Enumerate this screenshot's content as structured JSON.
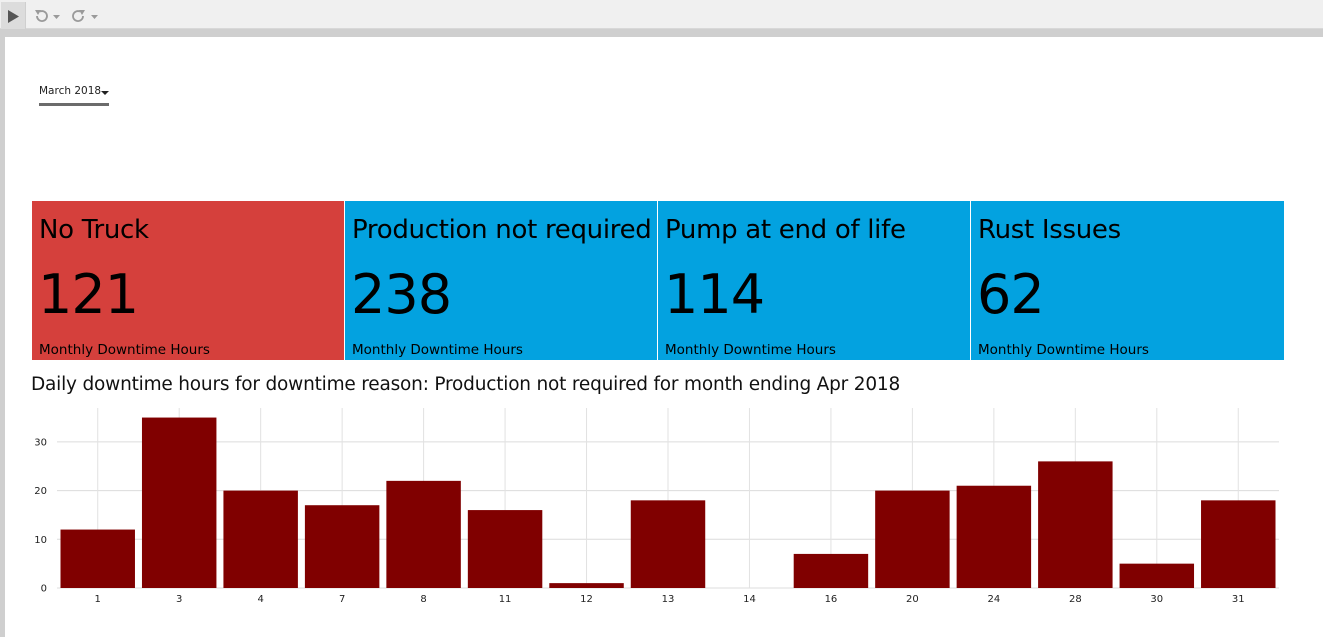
{
  "toolbar": {
    "play_icon": "play-icon",
    "undo_icon": "undo-icon",
    "redo_icon": "redo-icon"
  },
  "filter": {
    "selected_month": "March 2018"
  },
  "cards": [
    {
      "title": "No Truck",
      "value": "121",
      "subtitle": "Monthly Downtime Hours",
      "color": "#d5403c"
    },
    {
      "title": "Production not required",
      "value": "238",
      "subtitle": "Monthly Downtime Hours",
      "color": "#03a2e0"
    },
    {
      "title": "Pump at end of life",
      "value": "114",
      "subtitle": "Monthly Downtime Hours",
      "color": "#03a2e0"
    },
    {
      "title": "Rust Issues",
      "value": "62",
      "subtitle": "Monthly Downtime Hours",
      "color": "#03a2e0"
    }
  ],
  "chart_title": "Daily downtime hours for downtime reason: Production not required for month ending Apr 2018",
  "chart_data": {
    "type": "bar",
    "categories": [
      "1",
      "3",
      "4",
      "7",
      "8",
      "11",
      "12",
      "13",
      "14",
      "16",
      "20",
      "24",
      "28",
      "30",
      "31"
    ],
    "values": [
      12,
      35,
      20,
      17,
      22,
      16,
      1,
      18,
      0,
      7,
      20,
      21,
      26,
      5,
      18
    ],
    "yticks": [
      0,
      10,
      20,
      30
    ],
    "ylim": [
      0,
      37
    ],
    "bar_color": "#800000",
    "grid": true,
    "title": "",
    "xlabel": "",
    "ylabel": ""
  }
}
